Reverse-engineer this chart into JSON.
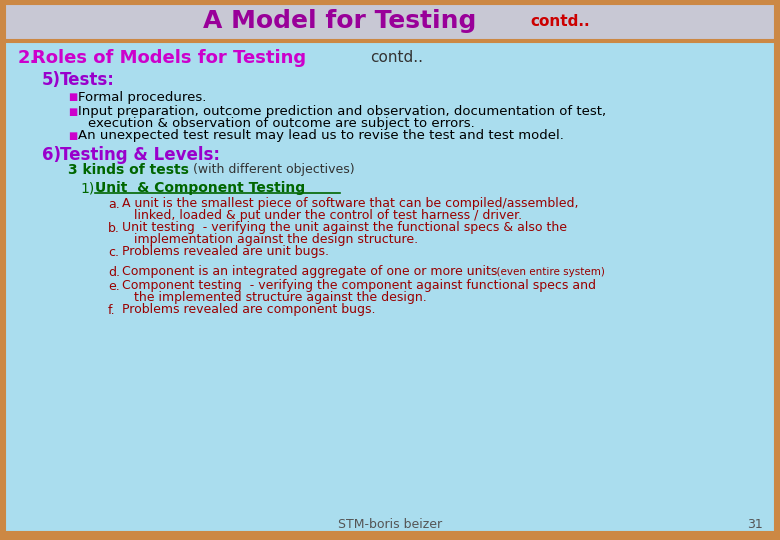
{
  "title": "A Model for Testing",
  "title_contd": "contd..",
  "title_bg": "#c8c8d4",
  "title_color": "#990099",
  "title_contd_color": "#cc0000",
  "main_bg": "#aaddee",
  "outer_border_color": "#cc8844",
  "inner_border_color": "#cc8844",
  "section2_label": "2.",
  "section2_text": "Roles of Models for Testing",
  "section2_contd": "contd..",
  "section2_color": "#cc00cc",
  "section2_contd_color": "#333333",
  "item5_label": "5)",
  "item5_text": "Tests:",
  "item5_color": "#9900cc",
  "bullet_color": "#cc00cc",
  "bullet_char": "■",
  "bullet5a": "Formal procedures.",
  "bullet5b_line1": "Input preparation, outcome prediction and observation, documentation of test,",
  "bullet5b_line2": "execution & observation of outcome are subject to errors.",
  "bullet5c": "An unexpected test result may lead us to revise the test and test model.",
  "item6_label": "6)",
  "item6_text": "Testing & Levels:",
  "item6_color": "#9900cc",
  "three_kinds_text": "3 kinds of tests",
  "three_kinds_color": "#006600",
  "three_kinds_parens": "  (with different objectives)",
  "three_kinds_parens_color": "#333333",
  "unit1_label": "1)",
  "unit1_text": "Unit  & Component Testing",
  "unit1_color": "#006600",
  "sub_color": "#990000",
  "sub_items": [
    {
      "label": "a.",
      "line1": "A unit is the smallest piece of software that can be compiled/assembled,",
      "line2": "linked, loaded & put under the control of test harness / driver.",
      "extra": ""
    },
    {
      "label": "b.",
      "line1": "Unit testing  - verifying the unit against the functional specs & also the",
      "line2": "implementation against the design structure.",
      "extra": ""
    },
    {
      "label": "c.",
      "line1": "Problems revealed are unit bugs.",
      "line2": "",
      "extra": ""
    },
    {
      "label": "d.",
      "line1": "Component is an integrated aggregate of one or more units",
      "line2": "",
      "extra": "  (even entire system)"
    },
    {
      "label": "e.",
      "line1": "Component testing  - verifying the component against functional specs and",
      "line2": "the implemented structure against the design.",
      "extra": ""
    },
    {
      "label": "f.",
      "line1": "Problems revealed are component bugs.",
      "line2": "",
      "extra": ""
    }
  ],
  "footer_text": "STM-boris beizer",
  "footer_num": "31",
  "footer_color": "#555555"
}
